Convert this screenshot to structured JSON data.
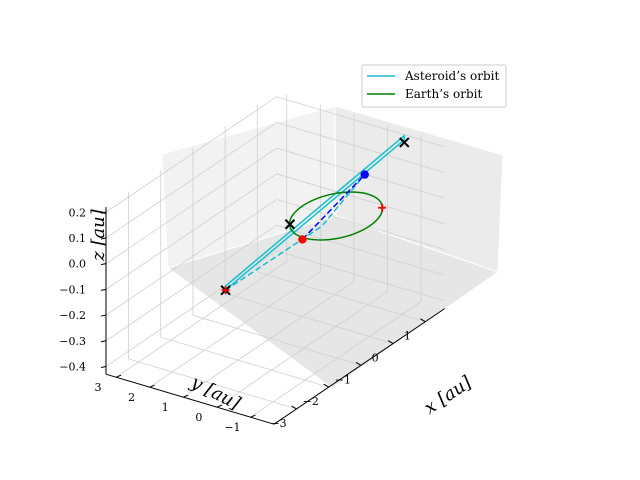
{
  "chart_data": {
    "type": "3d-line",
    "title": "",
    "xlabel": "x [au]",
    "ylabel": "y [au]",
    "zlabel": "z [au]",
    "x_ticks": [
      "−3",
      "−2",
      "−1",
      "0",
      "1"
    ],
    "y_ticks": [
      "−1",
      "0",
      "1",
      "2",
      "3"
    ],
    "z_ticks": [
      "−0.4",
      "−0.3",
      "−0.2",
      "−0.1",
      "0.0",
      "0.1",
      "0.2"
    ],
    "xlim": [
      -3.7,
      1.6
    ],
    "ylim": [
      -1.7,
      3.3
    ],
    "zlim": [
      -0.43,
      0.22
    ],
    "grid": true,
    "legend_position": "top-right",
    "series": [
      {
        "name": "Asteroid’s orbit",
        "color": "#17becf",
        "style": "solid",
        "points": [
          [
            -0.35,
            3.0,
            -0.38
          ],
          [
            1.6,
            -0.5,
            0.18
          ],
          [
            1.65,
            -0.45,
            0.19
          ],
          [
            -0.25,
            3.05,
            -0.37
          ],
          [
            -0.35,
            3.0,
            -0.38
          ]
        ]
      },
      {
        "name": "Earth’s orbit",
        "color": "#008000",
        "style": "solid",
        "type": "circle",
        "center": [
          0,
          0,
          0
        ],
        "radius": 1.0
      }
    ],
    "transfers": [
      {
        "color": "#17becf",
        "style": "dashed",
        "points": [
          [
            -0.3,
            3.0,
            -0.38
          ],
          [
            0.6,
            1.0,
            -0.13
          ],
          [
            1.1,
            0.2,
            0.06
          ]
        ]
      },
      {
        "color": "#0000ff",
        "style": "dashed",
        "points": [
          [
            0.0,
            1.0,
            -0.13
          ],
          [
            1.1,
            0.2,
            0.06
          ]
        ]
      }
    ],
    "markers": [
      {
        "symbol": "x",
        "color": "#000000",
        "point": [
          -0.3,
          3.0,
          -0.38
        ]
      },
      {
        "symbol": "x",
        "color": "#000000",
        "point": [
          1.6,
          -0.5,
          0.17
        ]
      },
      {
        "symbol": "x",
        "color": "#000000",
        "point": [
          -0.7,
          0.7,
          0.0
        ]
      },
      {
        "symbol": "+",
        "color": "#ff0000",
        "point": [
          -0.3,
          3.0,
          -0.38
        ]
      },
      {
        "symbol": "+",
        "color": "#ff0000",
        "point": [
          0.7,
          -0.7,
          0.0
        ]
      },
      {
        "symbol": "dot",
        "color": "#ff0000",
        "point": [
          0.0,
          1.0,
          -0.13
        ]
      },
      {
        "symbol": "dot",
        "color": "#0000ff",
        "point": [
          1.1,
          0.2,
          0.06
        ]
      }
    ]
  }
}
